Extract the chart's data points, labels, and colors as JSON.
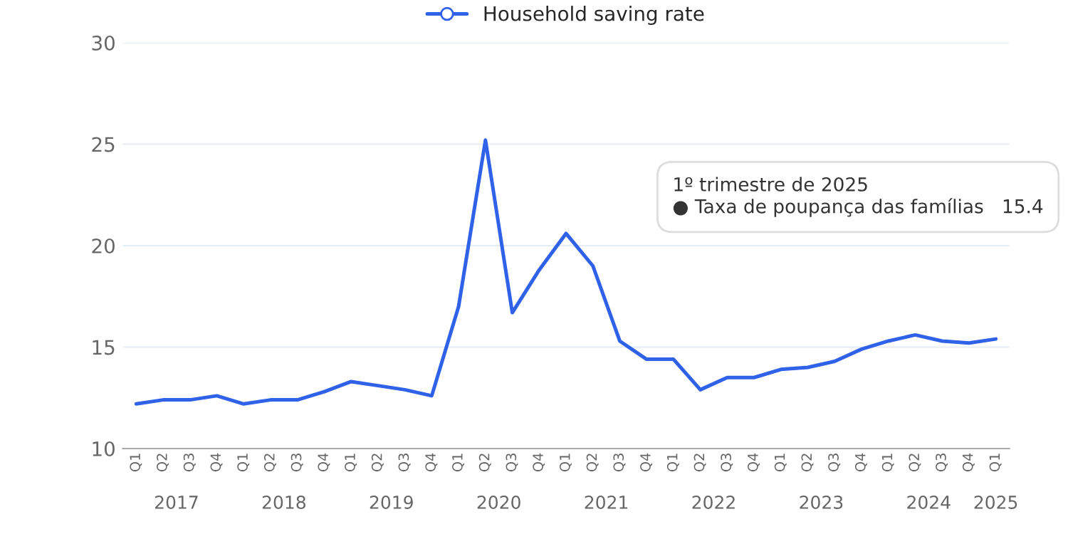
{
  "chart_data": {
    "type": "line",
    "categories": [
      "Q1",
      "Q2",
      "Q3",
      "Q4",
      "Q1",
      "Q2",
      "Q3",
      "Q4",
      "Q1",
      "Q2",
      "Q3",
      "Q4",
      "Q1",
      "Q2",
      "Q3",
      "Q4",
      "Q1",
      "Q2",
      "Q3",
      "Q4",
      "Q1",
      "Q2",
      "Q3",
      "Q4",
      "Q1",
      "Q2",
      "Q3",
      "Q4",
      "Q1",
      "Q2",
      "Q3",
      "Q4",
      "Q1"
    ],
    "series": [
      {
        "name": "Household saving rate",
        "color": "#2f62e8",
        "values": [
          12.2,
          12.4,
          12.4,
          12.6,
          12.2,
          12.4,
          12.4,
          12.8,
          13.3,
          13.1,
          12.9,
          12.6,
          17.0,
          25.2,
          16.7,
          18.8,
          20.6,
          19.0,
          15.3,
          14.4,
          14.4,
          12.9,
          13.5,
          13.5,
          13.9,
          14.0,
          14.3,
          14.9,
          15.3,
          15.6,
          15.3,
          15.2,
          15.4
        ]
      }
    ],
    "ylim": [
      10,
      30
    ],
    "yticks": [
      10,
      15,
      20,
      25,
      30
    ],
    "grid": "y",
    "legend": "top",
    "marker": "none",
    "line_style": "solid",
    "annotations": [
      "1º trimestre de 2025\n● Taxa de poupança das famílias   15.4",
      "2017",
      "2018",
      "2019",
      "2020",
      "2021",
      "2022",
      "2023",
      "2024",
      "2025"
    ]
  }
}
